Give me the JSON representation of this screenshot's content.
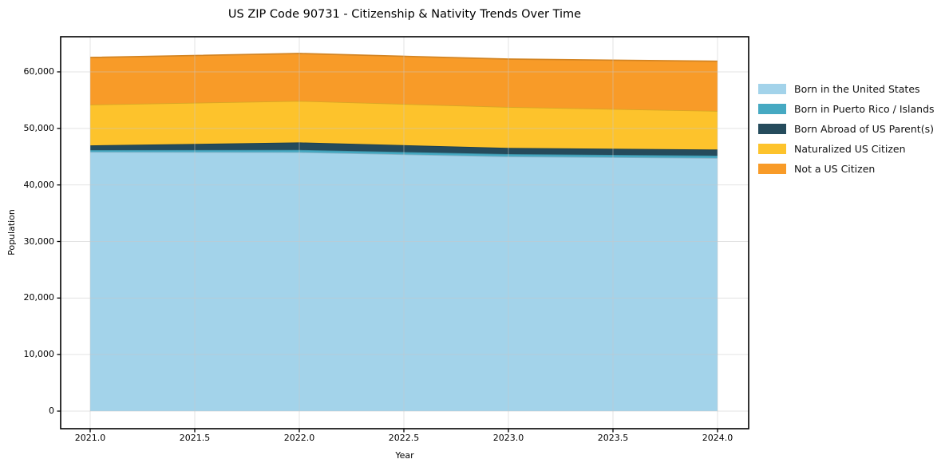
{
  "chart_data": {
    "type": "area",
    "stacked": true,
    "title": "US ZIP Code 90731 - Citizenship & Nativity Trends Over Time",
    "xlabel": "Year",
    "ylabel": "Population",
    "x": [
      2021,
      2022,
      2023,
      2024
    ],
    "series": [
      {
        "name": "Born in the United States",
        "color": "#a3d3ea",
        "values": [
          45840,
          45780,
          45040,
          44750
        ]
      },
      {
        "name": "Born in Puerto Rico / Islands",
        "color": "#46a9c2",
        "values": [
          330,
          420,
          420,
          430
        ]
      },
      {
        "name": "Born Abroad of US Parent(s)",
        "color": "#254b5c",
        "values": [
          830,
          1320,
          1090,
          1080
        ]
      },
      {
        "name": "Naturalized US Citizen",
        "color": "#fdc32c",
        "values": [
          7210,
          7340,
          7240,
          6820
        ]
      },
      {
        "name": "Not a US Citizen",
        "color": "#f89b28",
        "values": [
          8330,
          8390,
          8470,
          8800
        ]
      }
    ],
    "stacked_totals": [
      62540,
      63250,
      62260,
      61880
    ],
    "x_tick_values": [
      2021.0,
      2021.5,
      2022.0,
      2022.5,
      2023.0,
      2023.5,
      2024.0
    ],
    "x_tick_labels": [
      "2021.0",
      "2021.5",
      "2022.0",
      "2022.5",
      "2023.0",
      "2023.5",
      "2024.0"
    ],
    "y_tick_values": [
      0,
      10000,
      20000,
      30000,
      40000,
      50000,
      60000
    ],
    "y_tick_labels": [
      "0",
      "10,000",
      "20,000",
      "30,000",
      "40,000",
      "50,000",
      "60,000"
    ],
    "xlim": [
      2020.86,
      2024.15
    ],
    "ylim": [
      -3100,
      66200
    ],
    "grid": true,
    "legend_position": "center right",
    "axis_color": "#000000",
    "gridline_color": "#c8c8c8",
    "background_color": "#ffffff"
  }
}
